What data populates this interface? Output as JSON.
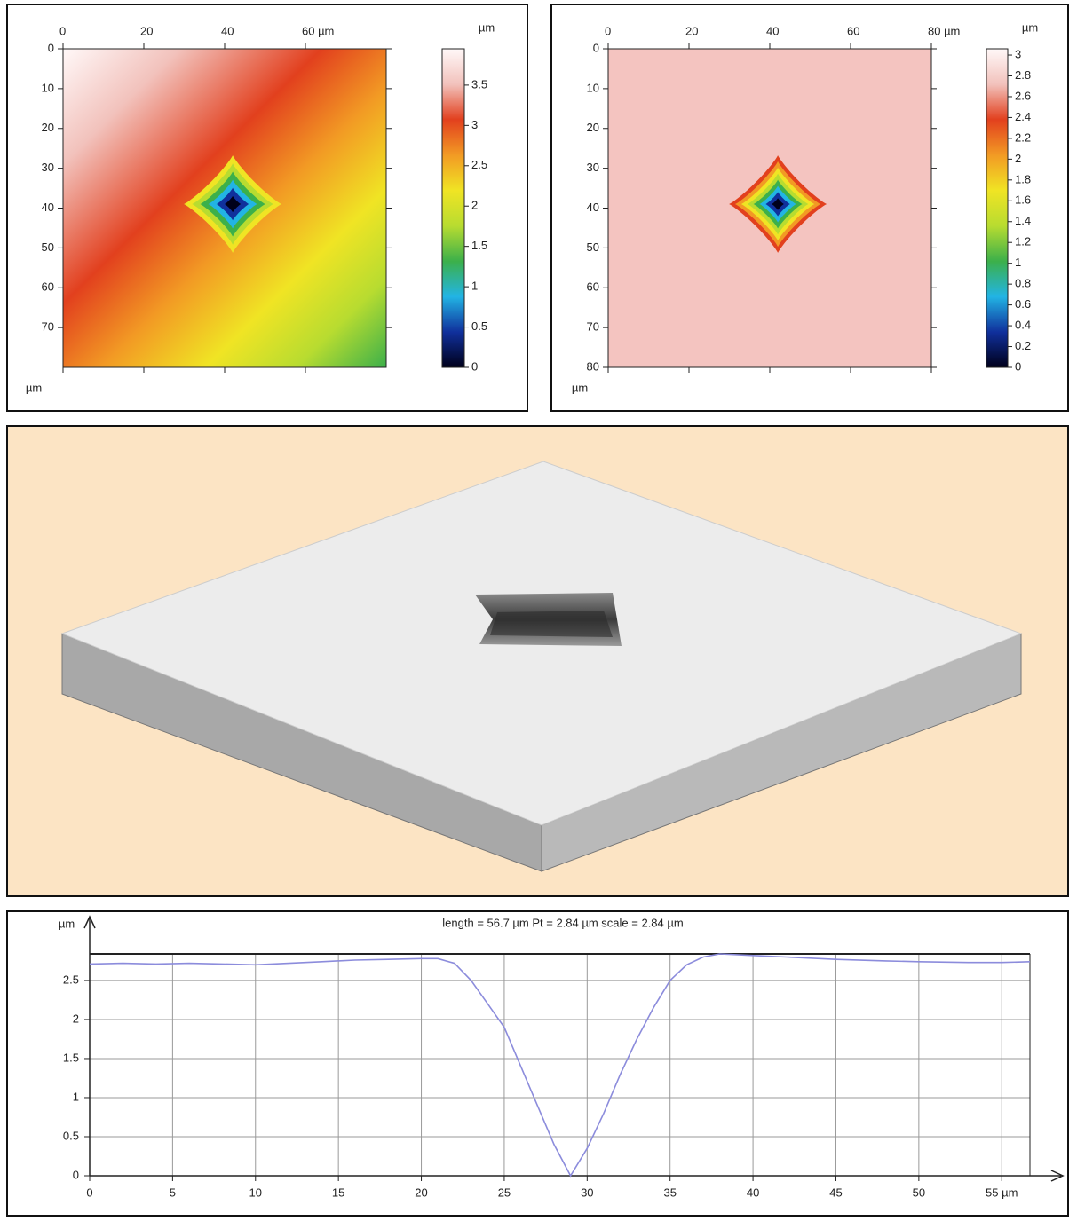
{
  "chart_data": [
    {
      "type": "heatmap",
      "xlim": [
        0,
        80
      ],
      "ylim": [
        0,
        80
      ],
      "xticks": [
        0,
        20,
        40,
        {
          "value": 60,
          "label": "60 µm"
        }
      ],
      "yticks": [
        0,
        10,
        20,
        30,
        40,
        50,
        60,
        70
      ],
      "unit": "µm",
      "colorbar": {
        "label": "µm",
        "lim": [
          0,
          3.95
        ],
        "ticks": [
          0,
          0.5,
          1,
          1.5,
          2,
          2.5,
          3,
          3.5
        ]
      },
      "colormap": [
        "#00001a",
        "#10309c",
        "#22b4e4",
        "#3cb04a",
        "#b8dc30",
        "#f0e424",
        "#f29a24",
        "#e2401e",
        "#f2c2bc",
        "#fff8f8"
      ]
    },
    {
      "type": "heatmap",
      "xlim": [
        0,
        80
      ],
      "ylim": [
        0,
        80
      ],
      "xticks": [
        0,
        20,
        40,
        60,
        {
          "value": 80,
          "label": "80 µm"
        }
      ],
      "yticks": [
        0,
        10,
        20,
        30,
        40,
        50,
        60,
        70,
        80
      ],
      "unit": "µm",
      "color": "#f4c4c0",
      "colorbar": {
        "label": "µm",
        "lim": [
          0,
          3.06
        ],
        "ticks": [
          0,
          0.2,
          0.4,
          0.6,
          0.8,
          1,
          1.2,
          1.4,
          1.6,
          1.8,
          2,
          2.2,
          2.4,
          2.6,
          2.8,
          3
        ]
      },
      "colormap": [
        "#00001a",
        "#10309c",
        "#22b4e4",
        "#3cb04a",
        "#b8dc30",
        "#f0e424",
        "#f29a24",
        "#e2401e",
        "#f2c2bc",
        "#fff8f8"
      ]
    },
    {
      "type": "line",
      "title": "length = 56.7 µm   Pt = 2.84 µm   scale = 2.84 µm",
      "y_label": "µm",
      "x": [
        0,
        2,
        4,
        6,
        8,
        10,
        12,
        14,
        16,
        18,
        20,
        21,
        22,
        23,
        24,
        25,
        26,
        27,
        28,
        29,
        30,
        31,
        32,
        33,
        34,
        35,
        36,
        37,
        38,
        40,
        42,
        45,
        48,
        50,
        53,
        55,
        56.7
      ],
      "values": [
        2.71,
        2.72,
        2.71,
        2.72,
        2.71,
        2.7,
        2.72,
        2.74,
        2.76,
        2.77,
        2.78,
        2.78,
        2.72,
        2.5,
        2.2,
        1.9,
        1.4,
        0.9,
        0.4,
        0.0,
        0.35,
        0.8,
        1.3,
        1.75,
        2.15,
        2.5,
        2.7,
        2.8,
        2.84,
        2.82,
        2.8,
        2.77,
        2.75,
        2.74,
        2.73,
        2.73,
        2.74
      ],
      "color": "#8c8cdc",
      "xlim": [
        0,
        56.7
      ],
      "ylim": [
        0,
        2.84
      ],
      "xticks": [
        0,
        5,
        10,
        15,
        20,
        25,
        30,
        35,
        40,
        45,
        50,
        {
          "value": 55,
          "label": "55 µm"
        }
      ],
      "yticks": [
        0,
        0.5,
        1,
        1.5,
        2,
        2.5
      ],
      "grid": true
    }
  ]
}
